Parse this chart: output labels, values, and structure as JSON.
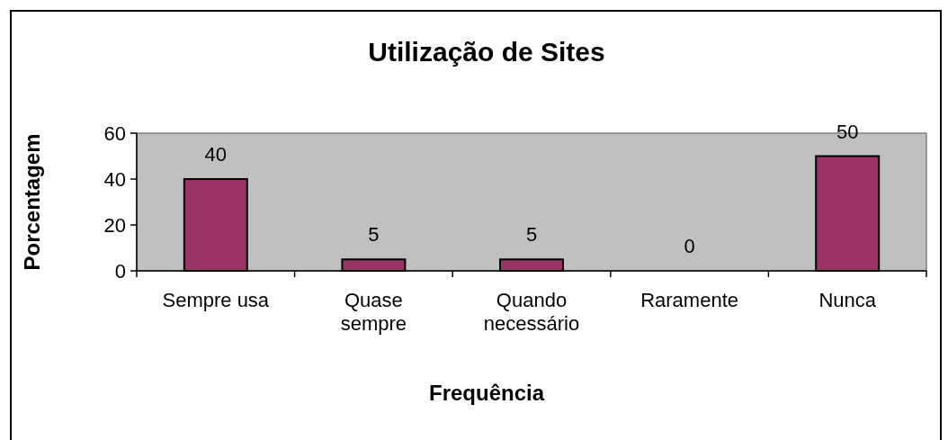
{
  "chart_data": {
    "type": "bar",
    "title": "Utilização de Sites",
    "xlabel": "Frequência",
    "ylabel": "Porcentagem",
    "categories": [
      "Sempre usa",
      "Quase sempre",
      "Quando necessário",
      "Raramente",
      "Nunca"
    ],
    "values": [
      40,
      5,
      5,
      0,
      50
    ],
    "color": "#993366",
    "ylim": [
      0,
      60
    ],
    "yticks": [
      0,
      20,
      40,
      60
    ],
    "data_labels": true,
    "grid": false
  }
}
